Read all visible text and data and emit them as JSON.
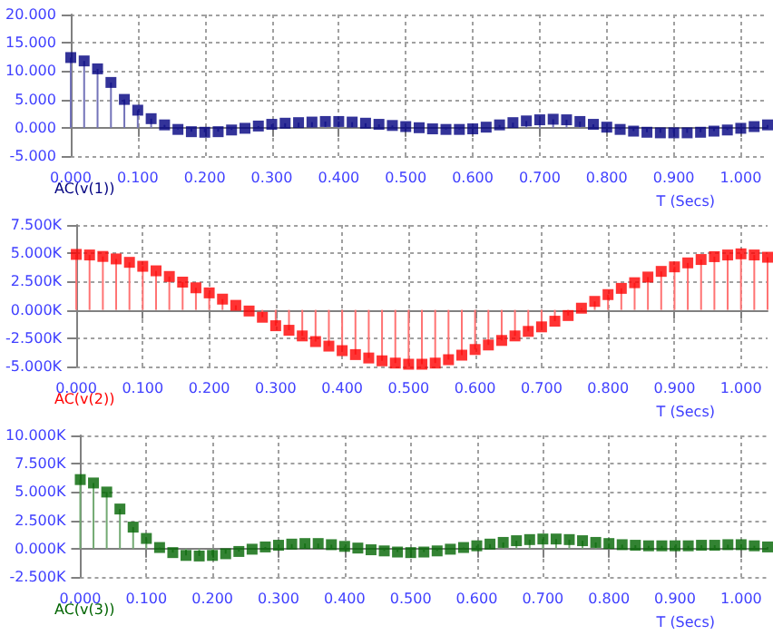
{
  "chart_data": [
    {
      "type": "lollipop",
      "xlabel": "T (Secs)",
      "marker": "square",
      "grid": true,
      "x": [
        0,
        0.02,
        0.04,
        0.06,
        0.08,
        0.1,
        0.12,
        0.14,
        0.16,
        0.18,
        0.2,
        0.22,
        0.24,
        0.26,
        0.28,
        0.3,
        0.32,
        0.34,
        0.36,
        0.38,
        0.4,
        0.42,
        0.44,
        0.46,
        0.48,
        0.5,
        0.52,
        0.54,
        0.56,
        0.58,
        0.6,
        0.62,
        0.64,
        0.66,
        0.68,
        0.7,
        0.72,
        0.74,
        0.76,
        0.78,
        0.8,
        0.82,
        0.84,
        0.86,
        0.88,
        0.9,
        0.92,
        0.94,
        0.96,
        0.98,
        1,
        1.02,
        1.04
      ],
      "series": [
        {
          "name": "AC(v(1))",
          "color": "#000080",
          "values": [
            12.4,
            11.8,
            10.4,
            8.0,
            5.0,
            3.1,
            1.6,
            0.5,
            -0.3,
            -0.7,
            -0.8,
            -0.7,
            -0.4,
            -0.1,
            0.3,
            0.6,
            0.8,
            0.9,
            1.0,
            1.1,
            1.1,
            1.0,
            0.8,
            0.6,
            0.4,
            0.2,
            0,
            -0.2,
            -0.3,
            -0.3,
            -0.2,
            0.1,
            0.5,
            0.9,
            1.2,
            1.4,
            1.5,
            1.4,
            1.1,
            0.6,
            0.1,
            -0.3,
            -0.6,
            -0.8,
            -0.9,
            -0.9,
            -0.9,
            -0.8,
            -0.6,
            -0.4,
            -0.1,
            0.2,
            0.5
          ]
        }
      ],
      "xlim": [
        0,
        1.04
      ],
      "xticks": [
        {
          "value": 0,
          "label": "0.000"
        },
        {
          "value": 0.1,
          "label": "0.100"
        },
        {
          "value": 0.2,
          "label": "0.200"
        },
        {
          "value": 0.3,
          "label": "0.300"
        },
        {
          "value": 0.4,
          "label": "0.400"
        },
        {
          "value": 0.5,
          "label": "0.500"
        },
        {
          "value": 0.6,
          "label": "0.600"
        },
        {
          "value": 0.7,
          "label": "0.700"
        },
        {
          "value": 0.8,
          "label": "0.800"
        },
        {
          "value": 0.9,
          "label": "0.900"
        },
        {
          "value": 1,
          "label": "1.000"
        }
      ],
      "ylim": [
        -5,
        20
      ],
      "yticks": [
        {
          "value": -5,
          "label": "-5.000"
        },
        {
          "value": 0,
          "label": "0.000"
        },
        {
          "value": 5,
          "label": "5.000"
        },
        {
          "value": 10,
          "label": "10.000"
        },
        {
          "value": 15,
          "label": "15.000"
        },
        {
          "value": 20,
          "label": "20.000"
        }
      ]
    },
    {
      "type": "lollipop",
      "xlabel": "T (Secs)",
      "marker": "square",
      "grid": true,
      "x": [
        0,
        0.02,
        0.04,
        0.06,
        0.08,
        0.1,
        0.12,
        0.14,
        0.16,
        0.18,
        0.2,
        0.22,
        0.24,
        0.26,
        0.28,
        0.3,
        0.32,
        0.34,
        0.36,
        0.38,
        0.4,
        0.42,
        0.44,
        0.46,
        0.48,
        0.5,
        0.52,
        0.54,
        0.56,
        0.58,
        0.6,
        0.62,
        0.64,
        0.66,
        0.68,
        0.7,
        0.72,
        0.74,
        0.76,
        0.78,
        0.8,
        0.82,
        0.84,
        0.86,
        0.88,
        0.9,
        0.92,
        0.94,
        0.96,
        0.98,
        1,
        1.02,
        1.04
      ],
      "series": [
        {
          "name": "AC(v(2))",
          "color": "#ff0000",
          "values": [
            4900,
            4850,
            4720,
            4500,
            4200,
            3850,
            3450,
            2950,
            2450,
            1950,
            1500,
            950,
            400,
            -100,
            -650,
            -1400,
            -1800,
            -2300,
            -2800,
            -3200,
            -3600,
            -3950,
            -4250,
            -4500,
            -4700,
            -4800,
            -4800,
            -4700,
            -4400,
            -4000,
            -3500,
            -3100,
            -2700,
            -2300,
            -1900,
            -1500,
            -1000,
            -500,
            150,
            750,
            1350,
            1900,
            2400,
            2900,
            3400,
            3800,
            4150,
            4450,
            4700,
            4850,
            4950,
            4850,
            4650
          ]
        }
      ],
      "xlim": [
        0,
        1.04
      ],
      "xticks": [
        {
          "value": 0,
          "label": "0.000"
        },
        {
          "value": 0.1,
          "label": "0.100"
        },
        {
          "value": 0.2,
          "label": "0.200"
        },
        {
          "value": 0.3,
          "label": "0.300"
        },
        {
          "value": 0.4,
          "label": "0.400"
        },
        {
          "value": 0.5,
          "label": "0.500"
        },
        {
          "value": 0.6,
          "label": "0.600"
        },
        {
          "value": 0.7,
          "label": "0.700"
        },
        {
          "value": 0.8,
          "label": "0.800"
        },
        {
          "value": 0.9,
          "label": "0.900"
        },
        {
          "value": 1,
          "label": "1.000"
        }
      ],
      "ylim": [
        -5000,
        7500
      ],
      "yticks": [
        {
          "value": -5000,
          "label": "-5.000K"
        },
        {
          "value": -2500,
          "label": "-2.500K"
        },
        {
          "value": 0,
          "label": "0.000K"
        },
        {
          "value": 2500,
          "label": "2.500K"
        },
        {
          "value": 5000,
          "label": "5.000K"
        },
        {
          "value": 7500,
          "label": "7.500K"
        }
      ]
    },
    {
      "type": "lollipop",
      "xlabel": "T (Secs)",
      "marker": "square",
      "grid": true,
      "x": [
        0,
        0.02,
        0.04,
        0.06,
        0.08,
        0.1,
        0.12,
        0.14,
        0.16,
        0.18,
        0.2,
        0.22,
        0.24,
        0.26,
        0.28,
        0.3,
        0.32,
        0.34,
        0.36,
        0.38,
        0.4,
        0.42,
        0.44,
        0.46,
        0.48,
        0.5,
        0.52,
        0.54,
        0.56,
        0.58,
        0.6,
        0.62,
        0.64,
        0.66,
        0.68,
        0.7,
        0.72,
        0.74,
        0.76,
        0.78,
        0.8,
        0.82,
        0.84,
        0.86,
        0.88,
        0.9,
        0.92,
        0.94,
        0.96,
        0.98,
        1,
        1.02,
        1.04
      ],
      "series": [
        {
          "name": "AC(v(3))",
          "color": "#006400",
          "values": [
            6100,
            5800,
            5000,
            3500,
            1900,
            900,
            100,
            -350,
            -600,
            -650,
            -600,
            -450,
            -250,
            -50,
            150,
            300,
            400,
            450,
            450,
            350,
            200,
            50,
            -100,
            -200,
            -300,
            -350,
            -300,
            -200,
            -50,
            100,
            250,
            400,
            550,
            700,
            800,
            850,
            850,
            800,
            700,
            550,
            450,
            350,
            300,
            250,
            250,
            250,
            250,
            300,
            300,
            350,
            350,
            250,
            150
          ]
        }
      ],
      "xlim": [
        0,
        1.04
      ],
      "xticks": [
        {
          "value": 0,
          "label": "0.000"
        },
        {
          "value": 0.1,
          "label": "0.100"
        },
        {
          "value": 0.2,
          "label": "0.200"
        },
        {
          "value": 0.3,
          "label": "0.300"
        },
        {
          "value": 0.4,
          "label": "0.400"
        },
        {
          "value": 0.5,
          "label": "0.500"
        },
        {
          "value": 0.6,
          "label": "0.600"
        },
        {
          "value": 0.7,
          "label": "0.700"
        },
        {
          "value": 0.8,
          "label": "0.800"
        },
        {
          "value": 0.9,
          "label": "0.900"
        },
        {
          "value": 1,
          "label": "1.000"
        }
      ],
      "ylim": [
        -2500,
        10000
      ],
      "yticks": [
        {
          "value": -2500,
          "label": "-2.500K"
        },
        {
          "value": 0,
          "label": "0.000K"
        },
        {
          "value": 2500,
          "label": "2.500K"
        },
        {
          "value": 5000,
          "label": "5.000K"
        },
        {
          "value": 7500,
          "label": "7.500K"
        },
        {
          "value": 10000,
          "label": "10.000K"
        }
      ]
    }
  ]
}
